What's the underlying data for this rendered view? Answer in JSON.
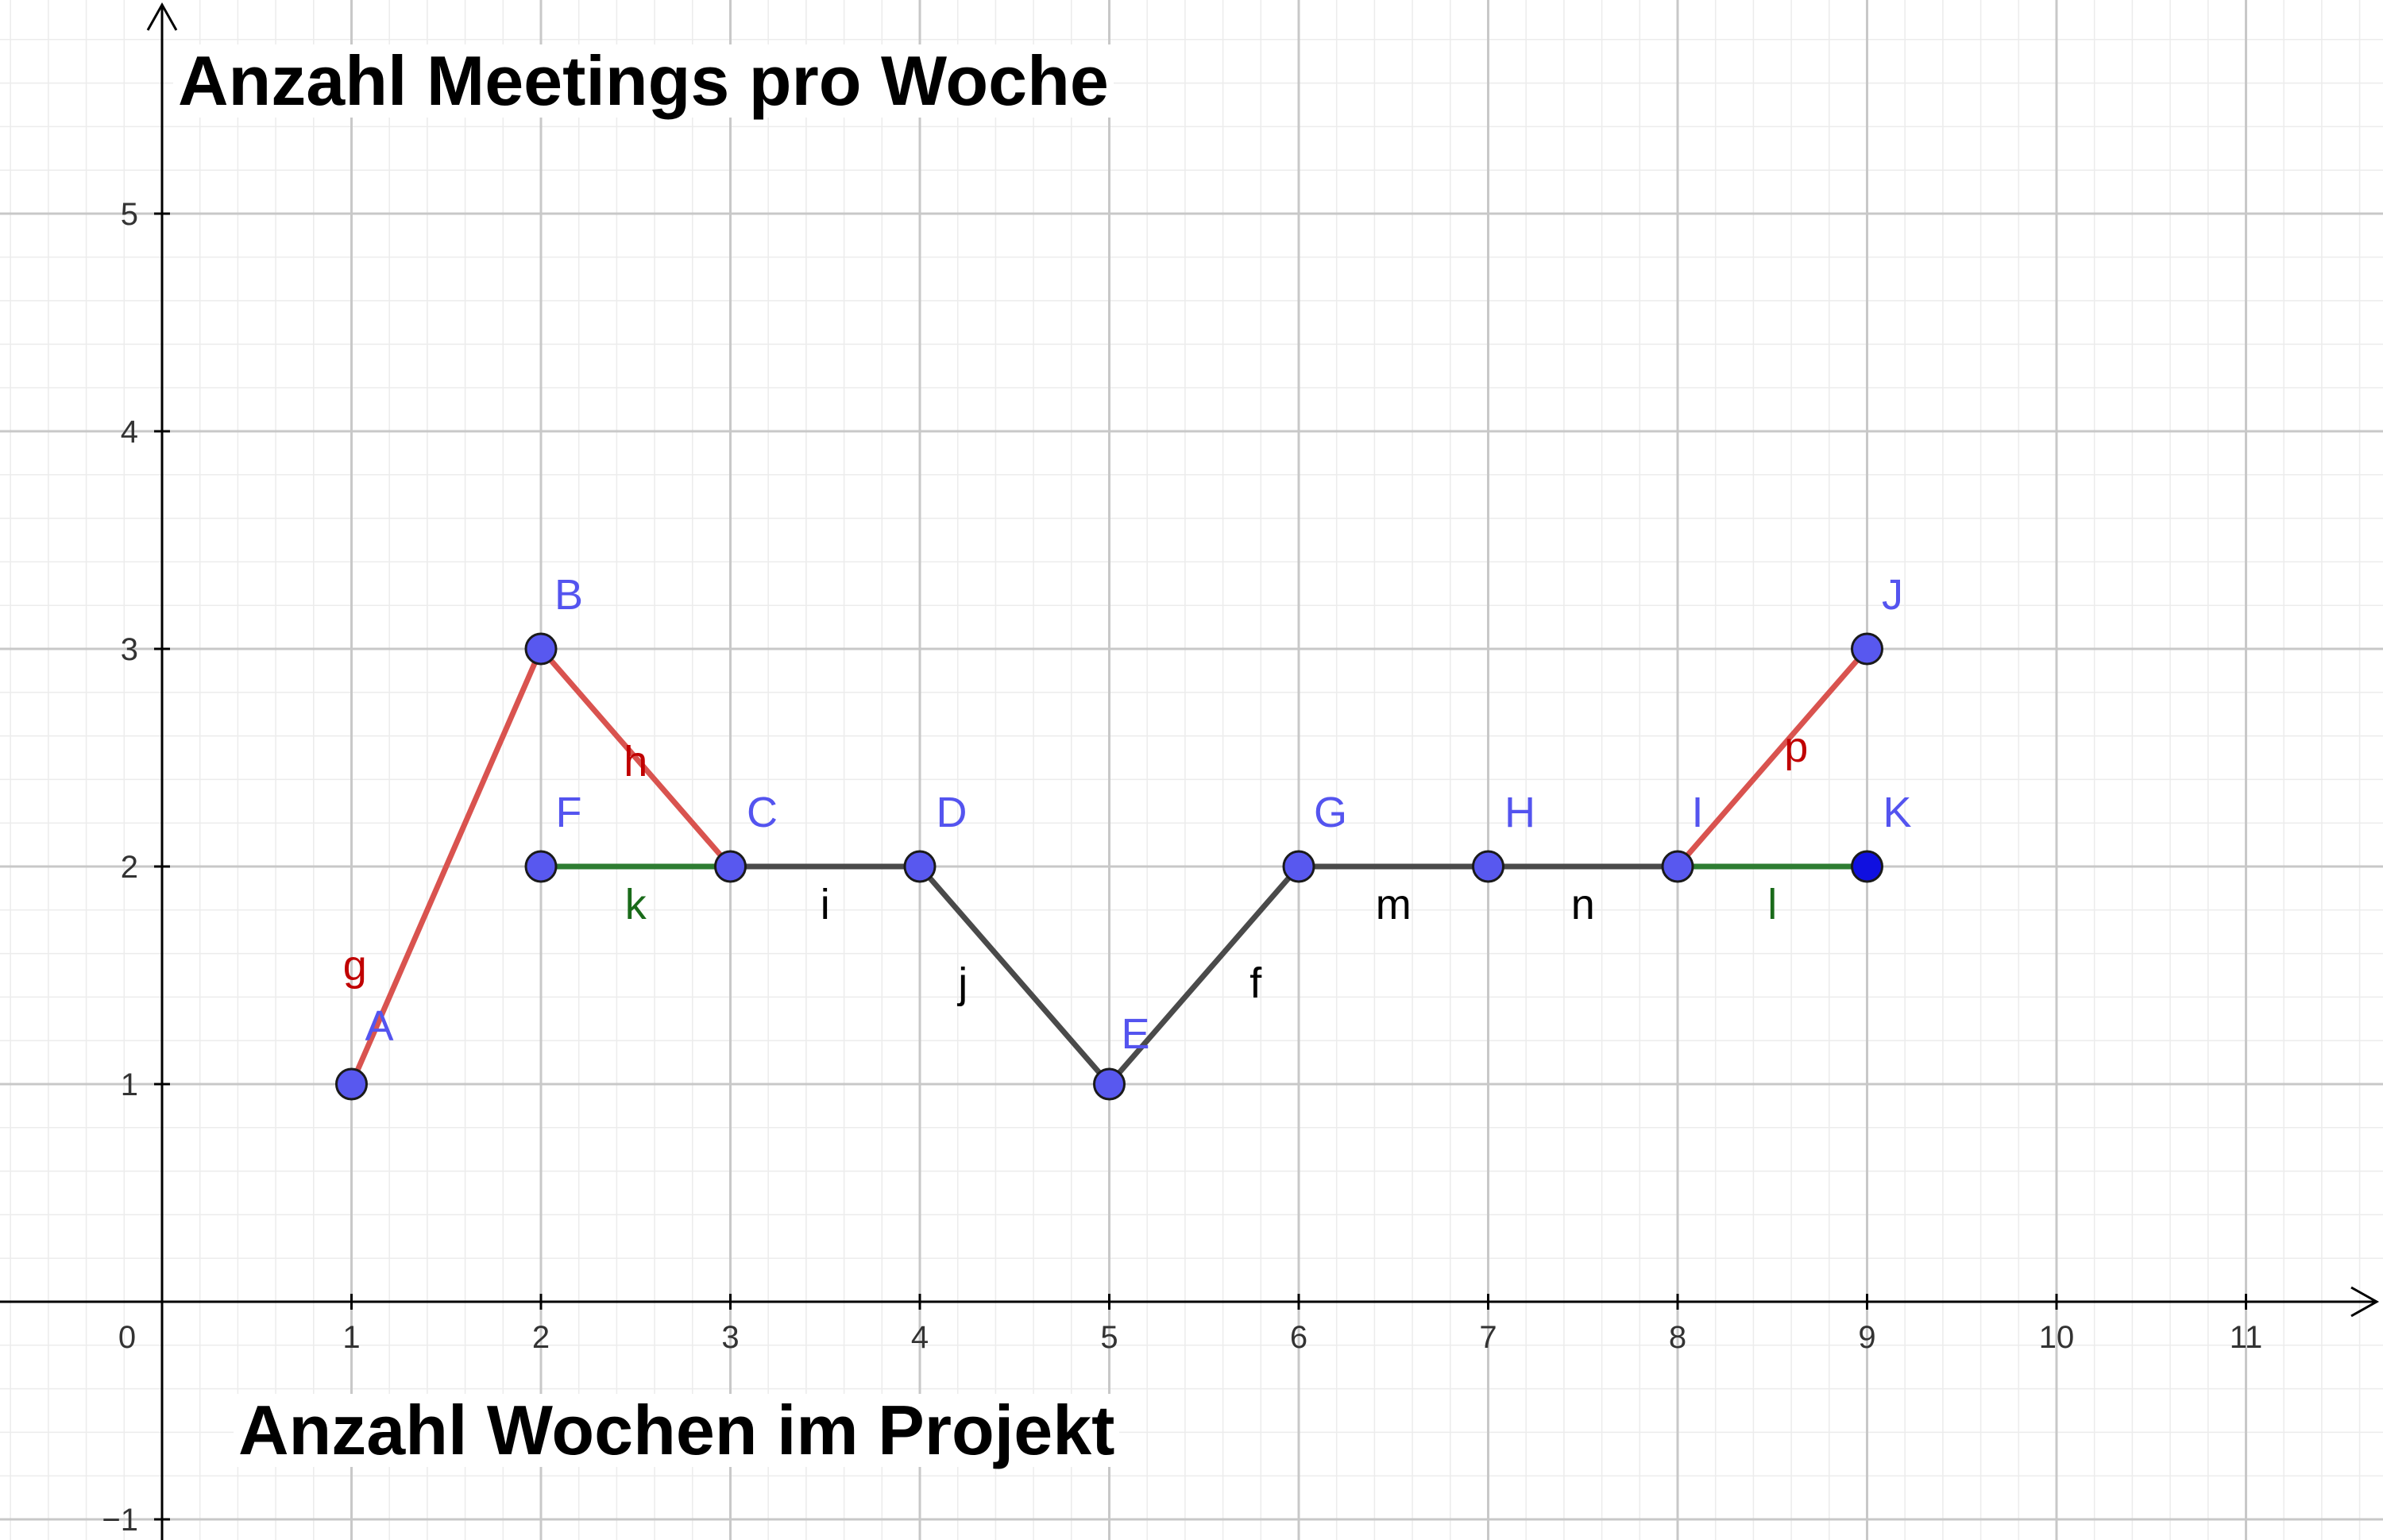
{
  "chart_data": {
    "type": "line",
    "title": "Anzahl Meetings pro Woche",
    "xlabel": "Anzahl Wochen im Projekt",
    "ylabel": "",
    "xlim": [
      -0.85,
      11.7
    ],
    "ylim": [
      -1.1,
      6
    ],
    "grid": true,
    "x_ticks": [
      "0",
      "1",
      "2",
      "3",
      "4",
      "5",
      "6",
      "7",
      "8",
      "9",
      "10",
      "11"
    ],
    "y_ticks": [
      "−1",
      "1",
      "2",
      "3",
      "4",
      "5"
    ],
    "colors": {
      "red": "#d9534f",
      "green": "#2e7d32",
      "dark": "#4a4a4a",
      "point": "#5858ef",
      "point_dark": "#1010e0",
      "label": "#5454ef",
      "red_label": "#c00000",
      "green_label": "#1a6b1a",
      "dark_label": "#000000"
    },
    "points": [
      {
        "name": "A",
        "x": 1,
        "y": 1
      },
      {
        "name": "B",
        "x": 2,
        "y": 3
      },
      {
        "name": "C",
        "x": 3,
        "y": 2
      },
      {
        "name": "D",
        "x": 4,
        "y": 2
      },
      {
        "name": "E",
        "x": 5,
        "y": 1
      },
      {
        "name": "F",
        "x": 2,
        "y": 2
      },
      {
        "name": "G",
        "x": 6,
        "y": 2
      },
      {
        "name": "H",
        "x": 7,
        "y": 2
      },
      {
        "name": "I",
        "x": 8,
        "y": 2
      },
      {
        "name": "J",
        "x": 9,
        "y": 3
      },
      {
        "name": "K",
        "x": 9,
        "y": 2
      }
    ],
    "segments": [
      {
        "name": "g",
        "from": "A",
        "to": "B",
        "color": "red"
      },
      {
        "name": "h",
        "from": "B",
        "to": "C",
        "color": "red"
      },
      {
        "name": "k",
        "from": "F",
        "to": "C",
        "color": "green"
      },
      {
        "name": "i",
        "from": "C",
        "to": "D",
        "color": "dark"
      },
      {
        "name": "j",
        "from": "D",
        "to": "E",
        "color": "dark"
      },
      {
        "name": "f",
        "from": "E",
        "to": "G",
        "color": "dark"
      },
      {
        "name": "m",
        "from": "G",
        "to": "H",
        "color": "dark"
      },
      {
        "name": "n",
        "from": "H",
        "to": "I",
        "color": "dark"
      },
      {
        "name": "p",
        "from": "I",
        "to": "J",
        "color": "red"
      },
      {
        "name": "l",
        "from": "I",
        "to": "K",
        "color": "green"
      }
    ]
  }
}
